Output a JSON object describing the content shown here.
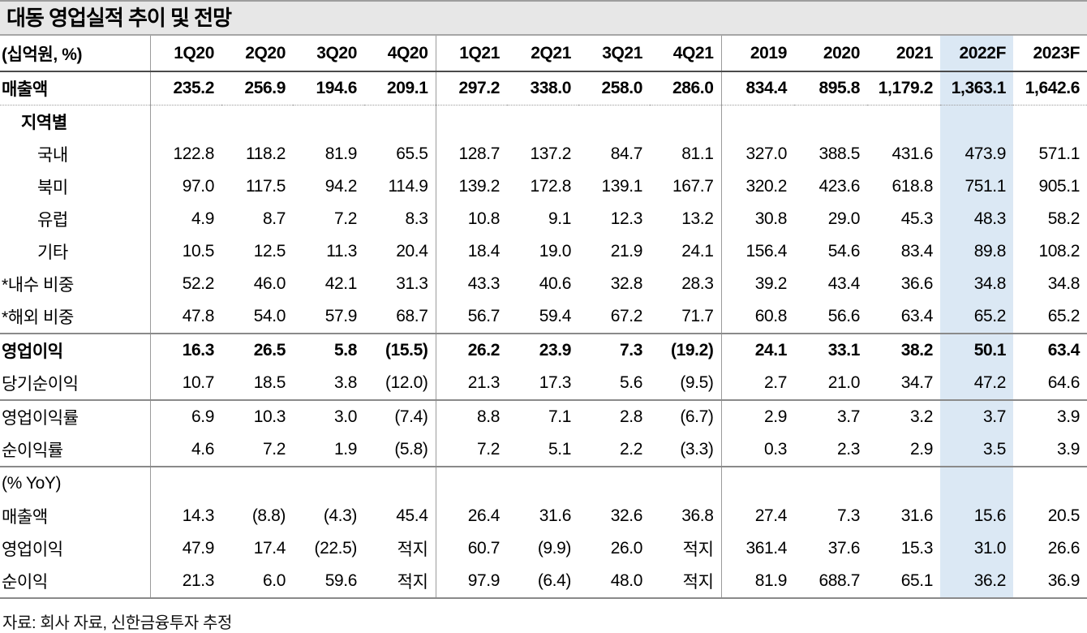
{
  "title": "대동 영업실적 추이 및 전망",
  "footer": {
    "source": "자료: 회사 자료, 신한금융투자 추정"
  },
  "colors": {
    "highlight_column_bg": "#dbe8f4",
    "title_band_bg": "#e7e7e7"
  },
  "table": {
    "unit_label": "(십억원, %)",
    "columns": [
      "1Q20",
      "2Q20",
      "3Q20",
      "4Q20",
      "1Q21",
      "2Q21",
      "3Q21",
      "4Q21",
      "2019",
      "2020",
      "2021",
      "2022F",
      "2023F"
    ],
    "highlight_column": "2022F",
    "rows": [
      {
        "label": "매출액",
        "flags": [
          "bold",
          "dotted"
        ],
        "values": [
          "235.2",
          "256.9",
          "194.6",
          "209.1",
          "297.2",
          "338.0",
          "258.0",
          "286.0",
          "834.4",
          "895.8",
          "1,179.2",
          "1,363.1",
          "1,642.6"
        ]
      },
      {
        "label": "지역별",
        "flags": [
          "section"
        ],
        "values": [
          "",
          "",
          "",
          "",
          "",
          "",
          "",
          "",
          "",
          "",
          "",
          "",
          ""
        ]
      },
      {
        "label": "국내",
        "flags": [
          "leaf"
        ],
        "values": [
          "122.8",
          "118.2",
          "81.9",
          "65.5",
          "128.7",
          "137.2",
          "84.7",
          "81.1",
          "327.0",
          "388.5",
          "431.6",
          "473.9",
          "571.1"
        ]
      },
      {
        "label": "북미",
        "flags": [
          "leaf"
        ],
        "values": [
          "97.0",
          "117.5",
          "94.2",
          "114.9",
          "139.2",
          "172.8",
          "139.1",
          "167.7",
          "320.2",
          "423.6",
          "618.8",
          "751.1",
          "905.1"
        ]
      },
      {
        "label": "유럽",
        "flags": [
          "leaf"
        ],
        "values": [
          "4.9",
          "8.7",
          "7.2",
          "8.3",
          "10.8",
          "9.1",
          "12.3",
          "13.2",
          "30.8",
          "29.0",
          "45.3",
          "48.3",
          "58.2"
        ]
      },
      {
        "label": "기타",
        "flags": [
          "leaf"
        ],
        "values": [
          "10.5",
          "12.5",
          "11.3",
          "20.4",
          "18.4",
          "19.0",
          "21.9",
          "24.1",
          "156.4",
          "54.6",
          "83.4",
          "89.8",
          "108.2"
        ]
      },
      {
        "label": "*내수 비중",
        "flags": [],
        "values": [
          "52.2",
          "46.0",
          "42.1",
          "31.3",
          "43.3",
          "40.6",
          "32.8",
          "28.3",
          "39.2",
          "43.4",
          "36.6",
          "34.8",
          "34.8"
        ]
      },
      {
        "label": "*해외 비중",
        "flags": [],
        "values": [
          "47.8",
          "54.0",
          "57.9",
          "68.7",
          "56.7",
          "59.4",
          "67.2",
          "71.7",
          "60.8",
          "56.6",
          "63.4",
          "65.2",
          "65.2"
        ]
      },
      {
        "label": "영업이익",
        "flags": [
          "bold",
          "topline"
        ],
        "values": [
          "16.3",
          "26.5",
          "5.8",
          "(15.5)",
          "26.2",
          "23.9",
          "7.3",
          "(19.2)",
          "24.1",
          "33.1",
          "38.2",
          "50.1",
          "63.4"
        ]
      },
      {
        "label": "당기순이익",
        "flags": [],
        "values": [
          "10.7",
          "18.5",
          "3.8",
          "(12.0)",
          "21.3",
          "17.3",
          "5.6",
          "(9.5)",
          "2.7",
          "21.0",
          "34.7",
          "47.2",
          "64.6"
        ]
      },
      {
        "label": "영업이익률",
        "flags": [
          "topline"
        ],
        "values": [
          "6.9",
          "10.3",
          "3.0",
          "(7.4)",
          "8.8",
          "7.1",
          "2.8",
          "(6.7)",
          "2.9",
          "3.7",
          "3.2",
          "3.7",
          "3.9"
        ]
      },
      {
        "label": "순이익률",
        "flags": [],
        "values": [
          "4.6",
          "7.2",
          "1.9",
          "(5.8)",
          "7.2",
          "5.1",
          "2.2",
          "(3.3)",
          "0.3",
          "2.3",
          "2.9",
          "3.5",
          "3.9"
        ]
      },
      {
        "label": "(% YoY)",
        "flags": [
          "topline"
        ],
        "values": [
          "",
          "",
          "",
          "",
          "",
          "",
          "",
          "",
          "",
          "",
          "",
          "",
          ""
        ]
      },
      {
        "label": "매출액",
        "flags": [],
        "values": [
          "14.3",
          "(8.8)",
          "(4.3)",
          "45.4",
          "26.4",
          "31.6",
          "32.6",
          "36.8",
          "27.4",
          "7.3",
          "31.6",
          "15.6",
          "20.5"
        ]
      },
      {
        "label": "영업이익",
        "flags": [],
        "values": [
          "47.9",
          "17.4",
          "(22.5)",
          "적지",
          "60.7",
          "(9.9)",
          "26.0",
          "적지",
          "361.4",
          "37.6",
          "15.3",
          "31.0",
          "26.6"
        ]
      },
      {
        "label": "순이익",
        "flags": [
          "last"
        ],
        "values": [
          "21.3",
          "6.0",
          "59.6",
          "적지",
          "97.9",
          "(6.4)",
          "48.0",
          "적지",
          "81.9",
          "688.7",
          "65.1",
          "36.2",
          "36.9"
        ]
      }
    ]
  }
}
